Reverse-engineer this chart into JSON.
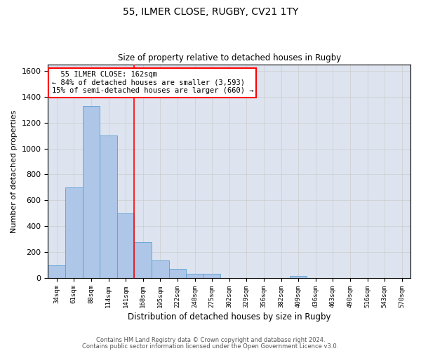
{
  "title1": "55, ILMER CLOSE, RUGBY, CV21 1TY",
  "title2": "Size of property relative to detached houses in Rugby",
  "xlabel": "Distribution of detached houses by size in Rugby",
  "ylabel": "Number of detached properties",
  "categories": [
    "34sqm",
    "61sqm",
    "88sqm",
    "114sqm",
    "141sqm",
    "168sqm",
    "195sqm",
    "222sqm",
    "248sqm",
    "275sqm",
    "302sqm",
    "329sqm",
    "356sqm",
    "382sqm",
    "409sqm",
    "436sqm",
    "463sqm",
    "490sqm",
    "516sqm",
    "543sqm",
    "570sqm"
  ],
  "values": [
    95,
    700,
    1330,
    1100,
    500,
    275,
    135,
    70,
    32,
    32,
    0,
    0,
    0,
    0,
    15,
    0,
    0,
    0,
    0,
    0,
    0
  ],
  "bar_color": "#aec6e8",
  "bar_edge_color": "#5a9fd4",
  "vline_x": 4.5,
  "vline_color": "red",
  "annotation_text": "  55 ILMER CLOSE: 162sqm\n← 84% of detached houses are smaller (3,593)\n15% of semi-detached houses are larger (660) →",
  "annotation_box_color": "white",
  "annotation_box_edge": "red",
  "ylim": [
    0,
    1650
  ],
  "yticks": [
    0,
    200,
    400,
    600,
    800,
    1000,
    1200,
    1400,
    1600
  ],
  "grid_color": "#cccccc",
  "background_color": "#dde4f0",
  "footer1": "Contains HM Land Registry data © Crown copyright and database right 2024.",
  "footer2": "Contains public sector information licensed under the Open Government Licence v3.0."
}
